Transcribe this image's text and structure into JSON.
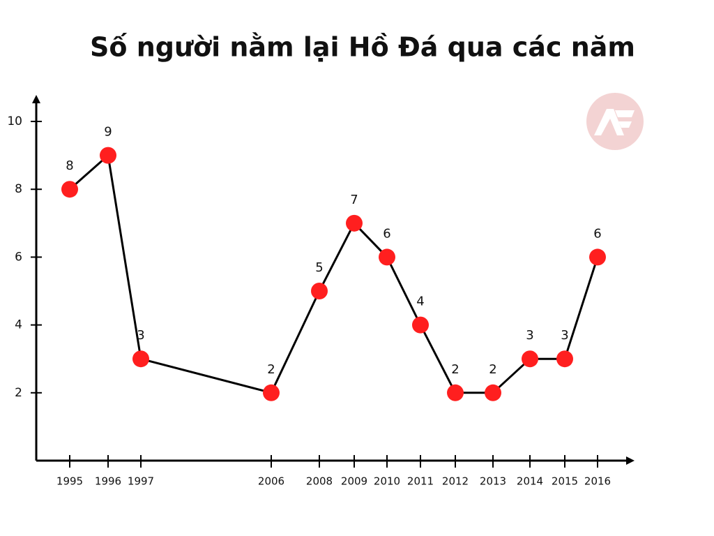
{
  "chart_data": {
    "type": "line",
    "title": "Số người nằm lại Hồ Đá qua các năm",
    "categories": [
      "1995",
      "1996",
      "1997",
      "2006",
      "2008",
      "2009",
      "2010",
      "2011",
      "2012",
      "2013",
      "2014",
      "2015",
      "2016"
    ],
    "values": [
      8,
      9,
      3,
      2,
      5,
      7,
      6,
      4,
      2,
      2,
      3,
      3,
      6
    ],
    "line_color": "#000000",
    "marker_color": "#ff1f1f",
    "ylim": [
      0,
      10.7
    ],
    "yticks": [
      2,
      4,
      6,
      8,
      10
    ],
    "grid": false
  }
}
